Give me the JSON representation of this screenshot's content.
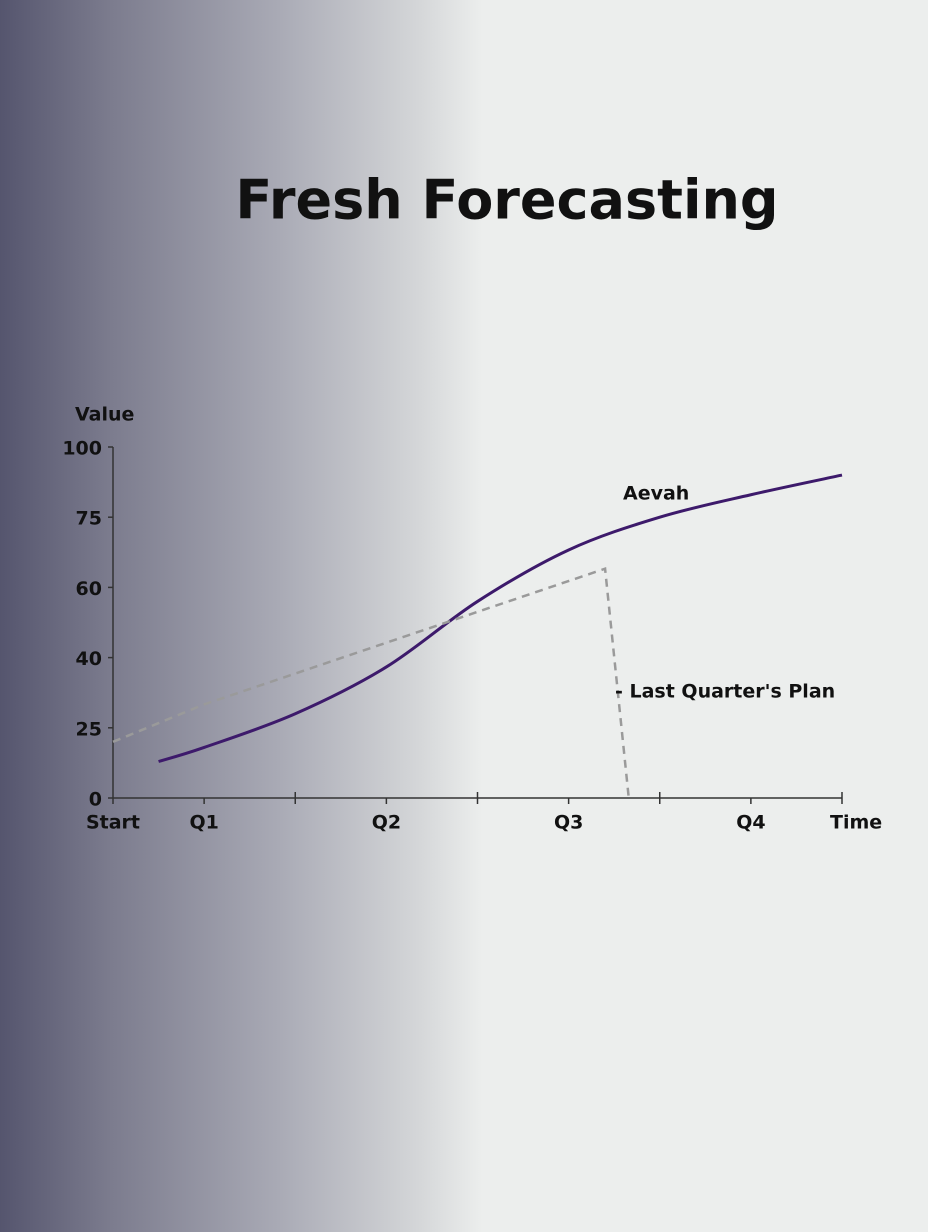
{
  "chart_data": {
    "type": "line",
    "title": "Fresh Forecasting",
    "y_label": "Value",
    "x_label": "Time",
    "xlim": [
      0,
      8
    ],
    "xticks": [
      {
        "value": 0,
        "label": "Start"
      },
      {
        "value": 1,
        "label": "Q1"
      },
      {
        "value": 3,
        "label": "Q2"
      },
      {
        "value": 5,
        "label": "Q3"
      },
      {
        "value": 7,
        "label": "Q4"
      }
    ],
    "x_minor_ticks": [
      2,
      4,
      6,
      8
    ],
    "ylim": [
      0,
      100
    ],
    "yticks": [
      0,
      25,
      40,
      60,
      75,
      100
    ],
    "series": [
      {
        "name": "Aevah",
        "color": "#3d1a6b",
        "dashed": false,
        "x": [
          0.5,
          1,
          2,
          3,
          4,
          5,
          6,
          7,
          8
        ],
        "values": [
          13,
          18,
          28,
          38,
          56,
          68,
          75,
          83,
          90
        ]
      },
      {
        "name": "- Last Quarter's Plan",
        "color": "#9a9a9a",
        "dashed": true,
        "x": [
          0,
          1,
          5.4,
          5.66
        ],
        "values": [
          20,
          30,
          64,
          0
        ]
      }
    ]
  }
}
